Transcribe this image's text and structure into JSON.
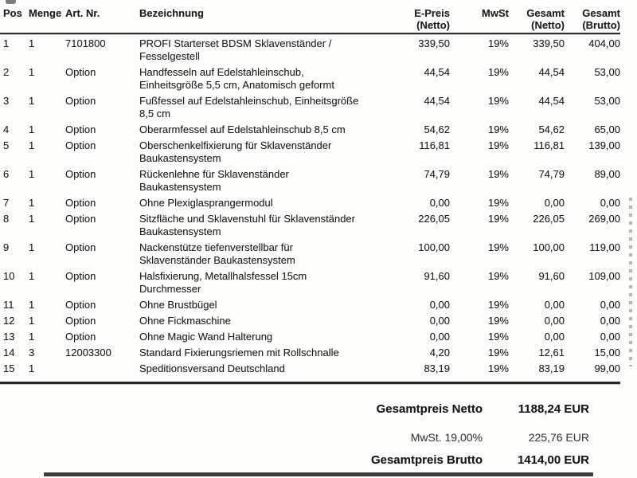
{
  "header": {
    "pos": "Pos",
    "menge": "Menge",
    "art": "Art. Nr.",
    "desc": "Bezeichnung",
    "eprice": "E-Preis\n(Netto)",
    "mwst": "MwSt",
    "net": "Gesamt\n(Netto)",
    "gross": "Gesamt\n(Brutto)"
  },
  "rows": [
    {
      "pos": "1",
      "menge": "1",
      "art": "7101800",
      "desc": [
        "PROFI Starterset BDSM Sklavenständer /",
        "Fesselgestell"
      ],
      "eprice": "339,50",
      "mwst": "19%",
      "net": "339,50",
      "gross": "404,00"
    },
    {
      "pos": "2",
      "menge": "1",
      "art": "Option",
      "desc": [
        "Handfesseln auf Edelstahleinschub,",
        "Einheitsgröße 5,5 cm, Anatomisch geformt"
      ],
      "eprice": "44,54",
      "mwst": "19%",
      "net": "44,54",
      "gross": "53,00"
    },
    {
      "pos": "3",
      "menge": "1",
      "art": "Option",
      "desc": [
        "Fußfessel auf Edelstahleinschub, Einheitsgröße",
        "8,5 cm"
      ],
      "eprice": "44,54",
      "mwst": "19%",
      "net": "44,54",
      "gross": "53,00"
    },
    {
      "pos": "4",
      "menge": "1",
      "art": "Option",
      "desc": [
        "Oberarmfessel auf Edelstahleinschub 8,5 cm"
      ],
      "eprice": "54,62",
      "mwst": "19%",
      "net": "54,62",
      "gross": "65,00"
    },
    {
      "pos": "5",
      "menge": "1",
      "art": "Option",
      "desc": [
        "Oberschenkelfixierung für Sklavenständer",
        "Baukastensystem"
      ],
      "eprice": "116,81",
      "mwst": "19%",
      "net": "116,81",
      "gross": "139,00"
    },
    {
      "pos": "6",
      "menge": "1",
      "art": "Option",
      "desc": [
        "Rückenlehne für Sklavenständer",
        "Baukastensystem"
      ],
      "eprice": "74,79",
      "mwst": "19%",
      "net": "74,79",
      "gross": "89,00"
    },
    {
      "pos": "7",
      "menge": "1",
      "art": "Option",
      "desc": [
        "Ohne Plexiglasprangermodul"
      ],
      "eprice": "0,00",
      "mwst": "19%",
      "net": "0,00",
      "gross": "0,00"
    },
    {
      "pos": "8",
      "menge": "1",
      "art": "Option",
      "desc": [
        "Sitzfläche und Sklavenstuhl für Sklavenständer",
        "Baukastensystem"
      ],
      "eprice": "226,05",
      "mwst": "19%",
      "net": "226,05",
      "gross": "269,00"
    },
    {
      "pos": "9",
      "menge": "1",
      "art": "Option",
      "desc": [
        "Nackenstütze tiefenverstellbar für",
        "Sklavenständer Baukastensystem"
      ],
      "eprice": "100,00",
      "mwst": "19%",
      "net": "100,00",
      "gross": "119,00"
    },
    {
      "pos": "10",
      "menge": "1",
      "art": "Option",
      "desc": [
        "Halsfixierung, Metallhalsfessel 15cm",
        "Durchmesser"
      ],
      "eprice": "91,60",
      "mwst": "19%",
      "net": "91,60",
      "gross": "109,00"
    },
    {
      "pos": "11",
      "menge": "1",
      "art": "Option",
      "desc": [
        "Ohne Brustbügel"
      ],
      "eprice": "0,00",
      "mwst": "19%",
      "net": "0,00",
      "gross": "0,00"
    },
    {
      "pos": "12",
      "menge": "1",
      "art": "Option",
      "desc": [
        "Ohne Fickmaschine"
      ],
      "eprice": "0,00",
      "mwst": "19%",
      "net": "0,00",
      "gross": "0,00"
    },
    {
      "pos": "13",
      "menge": "1",
      "art": "Option",
      "desc": [
        "Ohne Magic Wand Halterung"
      ],
      "eprice": "0,00",
      "mwst": "19%",
      "net": "0,00",
      "gross": "0,00"
    },
    {
      "pos": "14",
      "menge": "3",
      "art": "12003300",
      "desc": [
        "Standard Fixierungsriemen mit Rollschnalle"
      ],
      "eprice": "4,20",
      "mwst": "19%",
      "net": "12,61",
      "gross": "15,00"
    },
    {
      "pos": "15",
      "menge": "1",
      "art": "",
      "desc": [
        "Speditionsversand Deutschland"
      ],
      "eprice": "83,19",
      "mwst": "19%",
      "net": "83,19",
      "gross": "99,00"
    }
  ],
  "totals": [
    {
      "label": "Gesamtpreis Netto",
      "value": "1188,24 EUR",
      "bold": true
    },
    {
      "label": "MwSt. 19,00%",
      "value": "225,76 EUR",
      "bold": false
    },
    {
      "label": "Gesamtpreis Brutto",
      "value": "1414,00 EUR",
      "bold": true
    }
  ]
}
